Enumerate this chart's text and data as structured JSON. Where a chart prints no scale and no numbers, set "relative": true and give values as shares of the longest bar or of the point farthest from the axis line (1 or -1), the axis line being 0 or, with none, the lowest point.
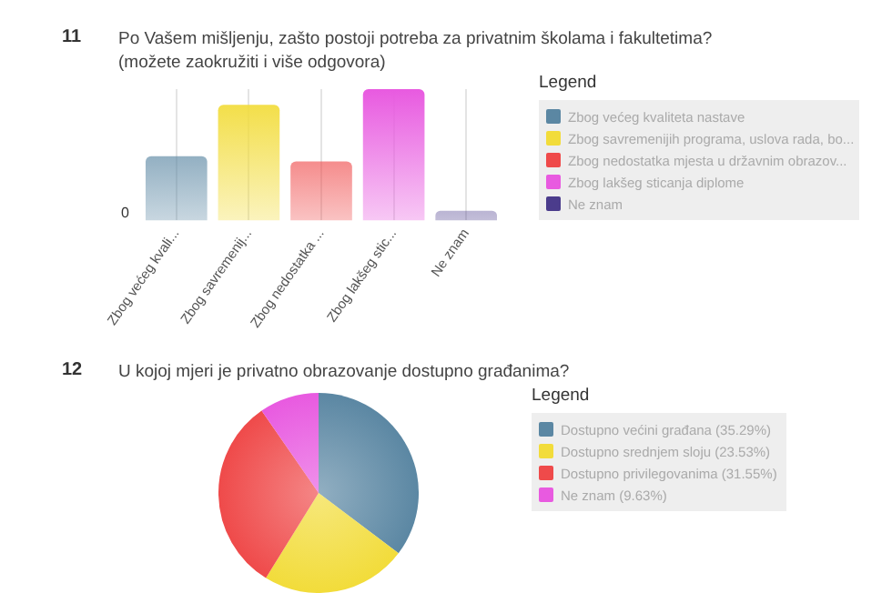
{
  "chart_data": [
    {
      "type": "bar",
      "title": "Po Vašem mišljenju, zašto postoji potreba za privatnim školama i fakultetima?",
      "subtitle": "(možete zaokružiti i više odgovora)",
      "annotations": [
        "11",
        "0"
      ],
      "categories": [
        "Zbog većeg kvali...",
        "Zbog savremenij...",
        "Zbog nedostatka ...",
        "Zbog lakšeg stic...",
        "Ne znam"
      ],
      "relative": true,
      "grid": "x",
      "legend": "right",
      "legend_title": "Legend",
      "series": [
        {
          "name": "Zbog većeg kvaliteta nastave",
          "color": "#5b87a3",
          "values": [
            0.49,
            null,
            null,
            null,
            null
          ]
        },
        {
          "name": "Zbog savremenijih programa, uslova rada, bo...",
          "color": "#f2dc3a",
          "values": [
            null,
            0.88,
            null,
            null,
            null
          ]
        },
        {
          "name": "Zbog nedostatka mjesta u državnim obrazov...",
          "color": "#ef4a4a",
          "values": [
            null,
            null,
            0.45,
            null,
            null
          ]
        },
        {
          "name": "Zbog lakšeg sticanja diplome",
          "color": "#e85ae0",
          "values": [
            null,
            null,
            null,
            1,
            null
          ]
        },
        {
          "name": "Ne znam",
          "color": "#4b3c8c",
          "values": [
            null,
            null,
            null,
            null,
            0.075
          ]
        }
      ]
    },
    {
      "type": "pie",
      "title": "U kojoj mjeri je privatno obrazovanje dostupno građanima?",
      "annotations": [
        "12"
      ],
      "legend": "right",
      "legend_title": "Legend",
      "categories": [
        "Dostupno većini građana (35.29%)",
        "Dostupno srednjem sloju (23.53%)",
        "Dostupno privilegovanima (31.55%)",
        "Ne znam (9.63%)"
      ],
      "values": [
        35.29,
        23.53,
        31.55,
        9.63
      ],
      "colors": [
        "#5b87a3",
        "#f2dc3a",
        "#ef4a4a",
        "#e85ae0"
      ]
    }
  ]
}
